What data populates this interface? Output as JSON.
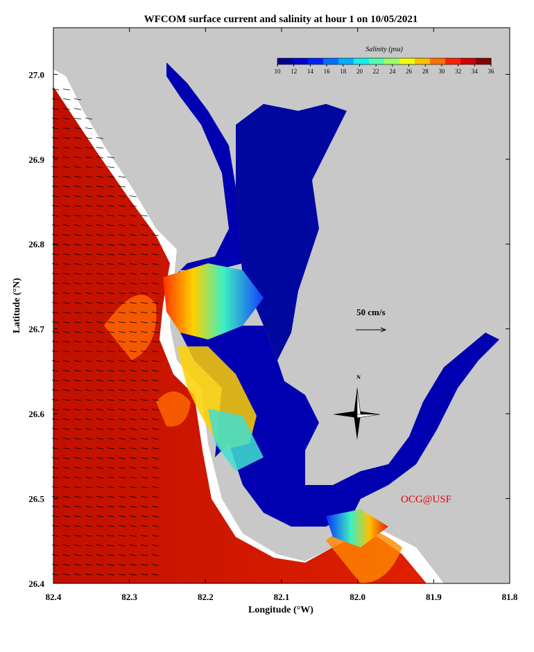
{
  "chart_data": {
    "type": "map",
    "title": "WFCOM surface current and salinity at hour 1 on 10/05/2021",
    "xlabel": "Longitude (°W)",
    "ylabel": "Latitude (°N)",
    "xlim": [
      82.4,
      81.8
    ],
    "ylim": [
      26.4,
      27.055
    ],
    "xticks": [
      82.4,
      82.3,
      82.2,
      82.1,
      {
        "value": 82,
        "label": "82.0"
      },
      81.9,
      81.8
    ],
    "yticks": [
      26.4,
      26.5,
      26.6,
      26.7,
      26.8,
      26.9,
      {
        "value": 27,
        "label": "27.0"
      }
    ],
    "colorbar": {
      "label": "Salinity (psu)",
      "clim": [
        10,
        36
      ],
      "ticks": [
        10,
        12,
        14,
        16,
        18,
        20,
        22,
        24,
        26,
        28,
        30,
        32,
        34,
        36
      ],
      "colors": [
        "#00008f",
        "#0000d0",
        "#0020ff",
        "#0070ff",
        "#00b0ff",
        "#10f0f0",
        "#50ffb0",
        "#a0ff60",
        "#f0ff10",
        "#ffc000",
        "#ff7000",
        "#ff2000",
        "#d00000",
        "#800000"
      ]
    },
    "annotations": [
      "50 cm/s",
      "OCG@USF",
      "N"
    ]
  }
}
